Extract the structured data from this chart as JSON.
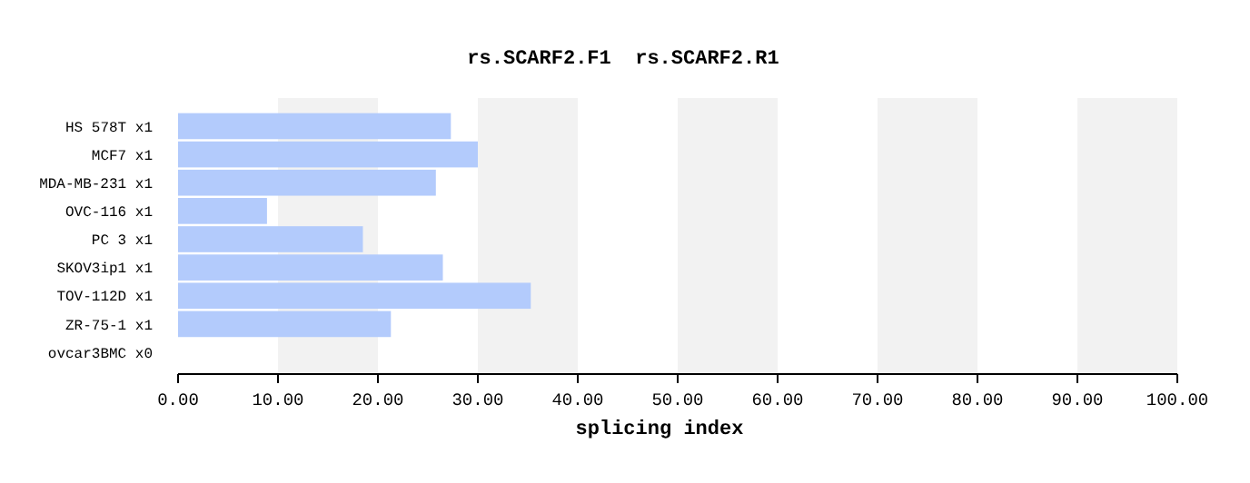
{
  "chart_data": {
    "type": "bar",
    "orientation": "horizontal",
    "title": "rs.SCARF2.F1  rs.SCARF2.R1",
    "xlabel": "splicing index",
    "categories": [
      "HS 578T x1",
      "MCF7 x1",
      "MDA-MB-231 x1",
      "OVC-116 x1",
      "PC 3 x1",
      "SKOV3ip1 x1",
      "TOV-112D x1",
      "ZR-75-1 x1",
      "ovcar3BMC x0"
    ],
    "values": [
      27.3,
      30.0,
      25.8,
      8.9,
      18.5,
      26.5,
      35.3,
      21.3,
      0
    ],
    "color": "#b3cbfc",
    "xlim": [
      0,
      100
    ],
    "xticks": [
      {
        "value": 0,
        "label": "0.00"
      },
      {
        "value": 10,
        "label": "10.00"
      },
      {
        "value": 20,
        "label": "20.00"
      },
      {
        "value": 30,
        "label": "30.00"
      },
      {
        "value": 40,
        "label": "40.00"
      },
      {
        "value": 50,
        "label": "50.00"
      },
      {
        "value": 60,
        "label": "60.00"
      },
      {
        "value": 70,
        "label": "70.00"
      },
      {
        "value": 80,
        "label": "80.00"
      },
      {
        "value": 90,
        "label": "90.00"
      },
      {
        "value": 100,
        "label": "100.00"
      }
    ],
    "bands": [
      {
        "axis": "x",
        "from": 10,
        "to": 20,
        "color": "#f2f2f2"
      },
      {
        "axis": "x",
        "from": 30,
        "to": 40,
        "color": "#f2f2f2"
      },
      {
        "axis": "x",
        "from": 50,
        "to": 60,
        "color": "#f2f2f2"
      },
      {
        "axis": "x",
        "from": 70,
        "to": 80,
        "color": "#f2f2f2"
      },
      {
        "axis": "x",
        "from": 90,
        "to": 100,
        "color": "#f2f2f2"
      }
    ]
  }
}
